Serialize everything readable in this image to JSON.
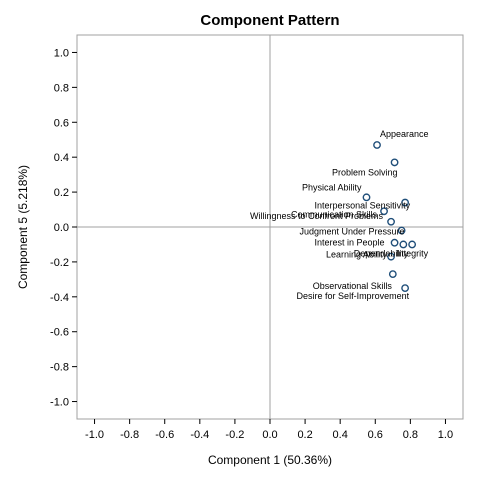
{
  "chart_data": {
    "type": "scatter",
    "title": "Component Pattern",
    "xlabel": "Component 1 (50.36%)",
    "ylabel": "Component 5 (5.218%)",
    "xlim": [
      -1.1,
      1.1
    ],
    "ylim": [
      -1.1,
      1.1
    ],
    "x_ticks": [
      -1.0,
      -0.8,
      -0.6,
      -0.4,
      -0.2,
      0.0,
      0.2,
      0.4,
      0.6,
      0.8,
      1.0
    ],
    "y_ticks": [
      -1.0,
      -0.8,
      -0.6,
      -0.4,
      -0.2,
      0.0,
      0.2,
      0.4,
      0.6,
      0.8,
      1.0
    ],
    "x_tick_labels": [
      "-1.0",
      "-0.8",
      "-0.6",
      "-0.4",
      "-0.2",
      "0.0",
      "0.2",
      "0.4",
      "0.6",
      "0.8",
      "1.0"
    ],
    "y_tick_labels": [
      "-1.0",
      "-0.8",
      "-0.6",
      "-0.4",
      "-0.2",
      "0.0",
      "0.2",
      "0.4",
      "0.6",
      "0.8",
      "1.0"
    ],
    "reference_lines": {
      "x": 0,
      "y": 0
    },
    "grid": false,
    "marker_color": "#1f4e79",
    "points": [
      {
        "label": "Appearance",
        "x": 0.61,
        "y": 0.47
      },
      {
        "label": "Problem Solving",
        "x": 0.71,
        "y": 0.37
      },
      {
        "label": "Physical Ability",
        "x": 0.55,
        "y": 0.17
      },
      {
        "label": "Interpersonal Sensitivity",
        "x": 0.77,
        "y": 0.14
      },
      {
        "label": "Communication Skills",
        "x": 0.65,
        "y": 0.09
      },
      {
        "label": "Willingness to Confront Problems",
        "x": 0.69,
        "y": 0.03
      },
      {
        "label": "Judgment Under Pressure",
        "x": 0.75,
        "y": -0.02
      },
      {
        "label": "Interest in People",
        "x": 0.71,
        "y": -0.09
      },
      {
        "label": "Dependability",
        "x": 0.76,
        "y": -0.1
      },
      {
        "label": "Integrity",
        "x": 0.81,
        "y": -0.1
      },
      {
        "label": "Learning Ability",
        "x": 0.69,
        "y": -0.17
      },
      {
        "label": "Observational Skills",
        "x": 0.7,
        "y": -0.27
      },
      {
        "label": "Desire for Self-Improvement",
        "x": 0.77,
        "y": -0.35
      }
    ]
  }
}
